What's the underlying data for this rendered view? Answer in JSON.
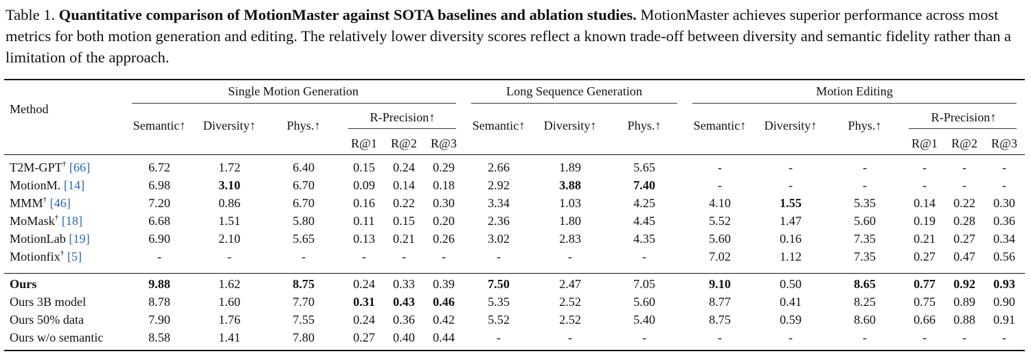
{
  "caption": {
    "label": "Table 1.",
    "title": "Quantitative comparison of MotionMaster against SOTA baselines and ablation studies.",
    "body": "MotionMaster achieves superior performance across most metrics for both motion generation and editing. The relatively lower diversity scores reflect a known trade-off between diversity and semantic fidelity rather than a limitation of the approach."
  },
  "header": {
    "method": "Method",
    "groups": [
      "Single Motion Generation",
      "Long Sequence Generation",
      "Motion Editing"
    ],
    "semantic": "Semantic↑",
    "diversity": "Diversity↑",
    "phys": "Phys.↑",
    "rprecision": "R-Precision↑",
    "r1": "R@1",
    "r2": "R@2",
    "r3": "R@3"
  },
  "rows": [
    {
      "name": "T2M-GPT",
      "dagger": "†",
      "ref": "[66]",
      "cells": [
        "6.72",
        "1.72",
        "6.40",
        "0.15",
        "0.24",
        "0.29",
        "2.66",
        "1.89",
        "5.65",
        "-",
        "-",
        "-",
        "-",
        "-",
        "-"
      ],
      "bold": []
    },
    {
      "name": "MotionM.",
      "dagger": "",
      "ref": "[14]",
      "cells": [
        "6.98",
        "3.10",
        "6.70",
        "0.09",
        "0.14",
        "0.18",
        "2.92",
        "3.88",
        "7.40",
        "-",
        "-",
        "-",
        "-",
        "-",
        "-"
      ],
      "bold": [
        1,
        7,
        8
      ]
    },
    {
      "name": "MMM",
      "dagger": "†",
      "ref": "[46]",
      "cells": [
        "7.20",
        "0.86",
        "6.70",
        "0.16",
        "0.22",
        "0.30",
        "3.34",
        "1.03",
        "4.25",
        "4.10",
        "1.55",
        "5.35",
        "0.14",
        "0.22",
        "0.30"
      ],
      "bold": [
        10
      ]
    },
    {
      "name": "MoMask",
      "dagger": "†",
      "ref": "[18]",
      "cells": [
        "6.68",
        "1.51",
        "5.80",
        "0.11",
        "0.15",
        "0.20",
        "2.36",
        "1.80",
        "4.45",
        "5.52",
        "1.47",
        "5.60",
        "0.19",
        "0.28",
        "0.36"
      ],
      "bold": []
    },
    {
      "name": "MotionLab",
      "dagger": "",
      "ref": "[19]",
      "cells": [
        "6.90",
        "2.10",
        "5.65",
        "0.13",
        "0.21",
        "0.26",
        "3.02",
        "2.83",
        "4.35",
        "5.60",
        "0.16",
        "7.35",
        "0.21",
        "0.27",
        "0.34"
      ],
      "bold": []
    },
    {
      "name": "Motionfix",
      "dagger": "†",
      "ref": "[5]",
      "cells": [
        "-",
        "-",
        "-",
        "-",
        "-",
        "-",
        "-",
        "-",
        "-",
        "7.02",
        "1.12",
        "7.35",
        "0.27",
        "0.47",
        "0.56"
      ],
      "bold": []
    },
    {
      "name": "Ours",
      "dagger": "",
      "ref": "",
      "nameBold": true,
      "cells": [
        "9.88",
        "1.62",
        "8.75",
        "0.24",
        "0.33",
        "0.39",
        "7.50",
        "2.47",
        "7.05",
        "9.10",
        "0.50",
        "8.65",
        "0.77",
        "0.92",
        "0.93"
      ],
      "bold": [
        0,
        2,
        6,
        9,
        11,
        12,
        13,
        14
      ]
    },
    {
      "name": "Ours 3B model",
      "dagger": "",
      "ref": "",
      "cells": [
        "8.78",
        "1.60",
        "7.70",
        "0.31",
        "0.43",
        "0.46",
        "5.35",
        "2.52",
        "5.60",
        "8.77",
        "0.41",
        "8.25",
        "0.75",
        "0.89",
        "0.90"
      ],
      "bold": [
        3,
        4,
        5
      ]
    },
    {
      "name": "Ours 50% data",
      "dagger": "",
      "ref": "",
      "cells": [
        "7.90",
        "1.76",
        "7.55",
        "0.24",
        "0.36",
        "0.42",
        "5.52",
        "2.52",
        "5.40",
        "8.75",
        "0.59",
        "8.60",
        "0.66",
        "0.88",
        "0.91"
      ],
      "bold": []
    },
    {
      "name": "Ours w/o semantic",
      "dagger": "",
      "ref": "",
      "cells": [
        "8.58",
        "1.41",
        "7.80",
        "0.27",
        "0.40",
        "0.44",
        "-",
        "-",
        "-",
        "-",
        "-",
        "-",
        "-",
        "-",
        "-"
      ],
      "bold": []
    }
  ]
}
